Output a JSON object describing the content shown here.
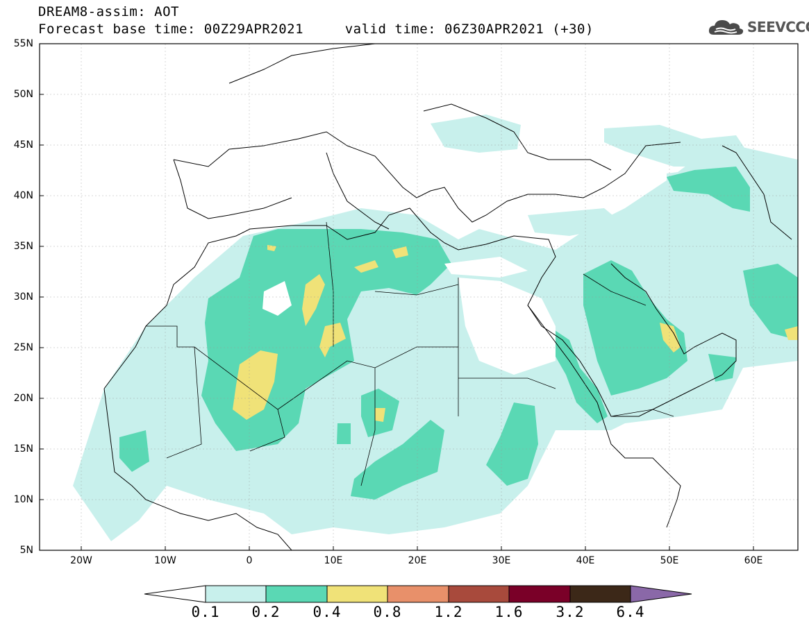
{
  "header": {
    "title_line1": "DREAM8-assim: AOT",
    "title_line2": "Forecast base time: 00Z29APR2021     valid time: 06Z30APR2021 (+30)",
    "logo_text": "SEEVCCC"
  },
  "map": {
    "lon_range": [
      -25,
      65
    ],
    "lat_range": [
      5,
      55
    ],
    "lat_ticks": [
      "55N",
      "50N",
      "45N",
      "40N",
      "35N",
      "30N",
      "25N",
      "20N",
      "15N",
      "10N",
      "5N"
    ],
    "lon_ticks": [
      "20W",
      "10W",
      "0",
      "10E",
      "20E",
      "30E",
      "40E",
      "50E",
      "60E"
    ]
  },
  "colorbar": {
    "labels": [
      "0.1",
      "0.2",
      "0.4",
      "0.8",
      "1.2",
      "1.6",
      "3.2",
      "6.4"
    ],
    "colors": [
      "#ffffff",
      "#c8f0ec",
      "#5ad8b4",
      "#f0e278",
      "#e8906a",
      "#a84a3c",
      "#7a0028",
      "#3c2818",
      "#8a68a8"
    ]
  }
}
